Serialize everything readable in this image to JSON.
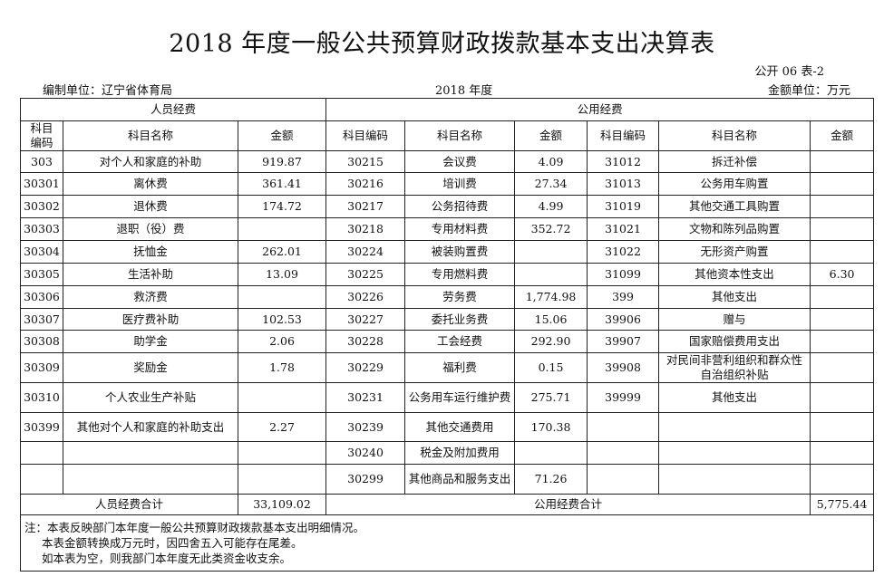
{
  "title": "2018 年度一般公共预算财政拨款基本支出决算表",
  "table_code": "公开 06 表-2",
  "unit_prefix": "编制单位：辽宁省体育局",
  "year": "2018 年度",
  "amount_unit": "金额单位：万元",
  "headers": {
    "personnel": "人员经费",
    "public": "公用经费",
    "code_a": "科目编码",
    "name": "科目名称",
    "amount": "金额",
    "code": "科目编码"
  },
  "rows": [
    [
      "303",
      "对个人和家庭的补助",
      "919.87",
      "30215",
      "会议费",
      "4.09",
      "31012",
      "拆迁补偿",
      ""
    ],
    [
      "30301",
      "离休费",
      "361.41",
      "30216",
      "培训费",
      "27.34",
      "31013",
      "公务用车购置",
      ""
    ],
    [
      "30302",
      "退休费",
      "174.72",
      "30217",
      "公务招待费",
      "4.99",
      "31019",
      "其他交通工具购置",
      ""
    ],
    [
      "30303",
      "退职（役）费",
      "",
      "30218",
      "专用材料费",
      "352.72",
      "31021",
      "文物和陈列品购置",
      ""
    ],
    [
      "30304",
      "抚恤金",
      "262.01",
      "30224",
      "被装购置费",
      "",
      "31022",
      "无形资产购置",
      ""
    ],
    [
      "30305",
      "生活补助",
      "13.09",
      "30225",
      "专用燃料费",
      "",
      "31099",
      "其他资本性支出",
      "6.30"
    ],
    [
      "30306",
      "救济费",
      "",
      "30226",
      "劳务费",
      "1,774.98",
      "399",
      "其他支出",
      ""
    ],
    [
      "30307",
      "医疗费补助",
      "102.53",
      "30227",
      "委托业务费",
      "15.06",
      "39906",
      "赠与",
      ""
    ],
    [
      "30308",
      "助学金",
      "2.06",
      "30228",
      "工会经费",
      "292.90",
      "39907",
      "国家赔偿费用支出",
      ""
    ],
    [
      "30309",
      "奖励金",
      "1.78",
      "30229",
      "福利费",
      "0.15",
      "39908",
      "对民间非营利组织和群众性自治组织补贴",
      ""
    ],
    [
      "30310",
      "个人农业生产补贴",
      "",
      "30231",
      "公务用车运行维护费",
      "275.71",
      "39999",
      "其他支出",
      ""
    ],
    [
      "30399",
      "其他对个人和家庭的补助支出",
      "2.27",
      "30239",
      "其他交通费用",
      "170.38",
      "",
      "",
      ""
    ],
    [
      "",
      "",
      "",
      "30240",
      "税金及附加费用",
      "",
      "",
      "",
      ""
    ],
    [
      "",
      "",
      "",
      "30299",
      "其他商品和服务支出",
      "71.26",
      "",
      "",
      ""
    ]
  ],
  "totals": {
    "personnel_label": "人员经费合计",
    "personnel_value": "33,109.02",
    "public_label": "公用经费合计",
    "public_value": "5,775.44"
  },
  "notes": [
    "注：本表反映部门本年度一般公共预算财政拨款基本支出明细情况。",
    "本表金额转换成万元时，因四舍五入可能存在尾差。",
    "如本表为空，则我部门本年度无此类资金收支余。"
  ]
}
